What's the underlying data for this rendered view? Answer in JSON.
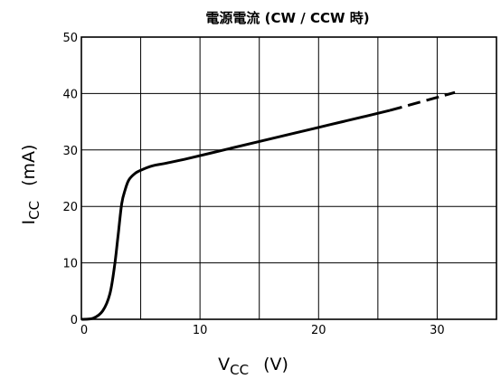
{
  "chart_data": {
    "type": "line",
    "title": "電源電流 (CW / CCW 時)",
    "xlabel": {
      "main": "V",
      "sub": "CC",
      "unit": "(V)"
    },
    "ylabel": {
      "main": "I",
      "sub": "CC",
      "unit": "(mA)"
    },
    "xlim": [
      0,
      35
    ],
    "ylim": [
      0,
      50
    ],
    "x_ticks": [
      0,
      5,
      10,
      15,
      20,
      25,
      30,
      35
    ],
    "x_tick_labels": [
      "0",
      "",
      "10",
      "",
      "20",
      "",
      "30",
      ""
    ],
    "y_ticks": [
      0,
      10,
      20,
      30,
      40,
      50
    ],
    "y_tick_labels": [
      "0",
      "10",
      "20",
      "30",
      "40",
      "50"
    ],
    "grid": true,
    "series": [
      {
        "style": "solid",
        "x": [
          0,
          1,
          1.8,
          2.4,
          2.8,
          3.1,
          3.4,
          3.7,
          4.0,
          4.5,
          5.0,
          6.0,
          7.0,
          9.0,
          12.0,
          15.0,
          18.0,
          21.0,
          24.0,
          26.0
        ],
        "y": [
          0,
          0.2,
          1.5,
          4.5,
          9.5,
          15.0,
          20.5,
          23.0,
          24.7,
          25.8,
          26.4,
          27.2,
          27.6,
          28.5,
          30.0,
          31.5,
          33.0,
          34.5,
          36.0,
          37.0
        ]
      },
      {
        "style": "dashed",
        "x": [
          26.0,
          31.5
        ],
        "y": [
          37.0,
          40.2
        ]
      }
    ]
  }
}
